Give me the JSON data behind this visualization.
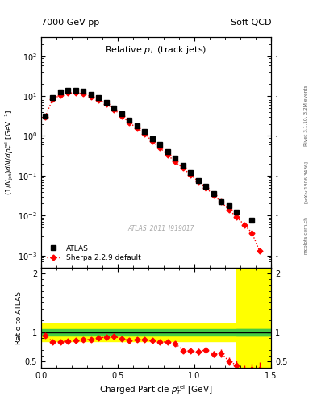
{
  "header_left": "7000 GeV pp",
  "header_right": "Soft QCD",
  "right_label_top": "Rivet 3.1.10, 3.2M events",
  "right_label_mid": "[arXiv:1306.3436]",
  "right_label_bot": "mcplots.cern.ch",
  "watermark": "ATLAS_2011_I919017",
  "ylabel_ratio": "Ratio to ATLAS",
  "atlas_x": [
    0.025,
    0.075,
    0.125,
    0.175,
    0.225,
    0.275,
    0.325,
    0.375,
    0.425,
    0.475,
    0.525,
    0.575,
    0.625,
    0.675,
    0.725,
    0.775,
    0.825,
    0.875,
    0.925,
    0.975,
    1.025,
    1.075,
    1.125,
    1.175,
    1.225,
    1.275,
    1.375
  ],
  "atlas_y": [
    3.2,
    9.0,
    12.5,
    14.0,
    14.0,
    13.0,
    11.0,
    9.0,
    7.0,
    5.0,
    3.6,
    2.5,
    1.8,
    1.3,
    0.85,
    0.6,
    0.4,
    0.28,
    0.18,
    0.12,
    0.075,
    0.055,
    0.035,
    0.022,
    0.018,
    0.012,
    0.0075
  ],
  "sherpa_x": [
    0.025,
    0.075,
    0.125,
    0.175,
    0.225,
    0.275,
    0.325,
    0.375,
    0.425,
    0.475,
    0.525,
    0.575,
    0.625,
    0.675,
    0.725,
    0.775,
    0.825,
    0.875,
    0.925,
    0.975,
    1.025,
    1.075,
    1.125,
    1.175,
    1.225,
    1.275,
    1.325,
    1.375,
    1.425
  ],
  "sherpa_y": [
    3.0,
    8.2,
    10.7,
    11.9,
    12.0,
    11.3,
    9.7,
    8.1,
    6.4,
    4.6,
    3.2,
    2.15,
    1.56,
    1.13,
    0.73,
    0.5,
    0.33,
    0.225,
    0.155,
    0.105,
    0.072,
    0.05,
    0.033,
    0.022,
    0.014,
    0.0092,
    0.0059,
    0.0037,
    0.0013
  ],
  "ratio_x": [
    0.025,
    0.075,
    0.125,
    0.175,
    0.225,
    0.275,
    0.325,
    0.375,
    0.425,
    0.475,
    0.525,
    0.575,
    0.625,
    0.675,
    0.725,
    0.775,
    0.825,
    0.875,
    0.925,
    0.975,
    1.025,
    1.075,
    1.125,
    1.175,
    1.225,
    1.275,
    1.325,
    1.375,
    1.425
  ],
  "ratio_y": [
    0.94,
    0.84,
    0.84,
    0.85,
    0.86,
    0.87,
    0.88,
    0.9,
    0.92,
    0.93,
    0.89,
    0.86,
    0.87,
    0.87,
    0.86,
    0.84,
    0.83,
    0.81,
    0.69,
    0.68,
    0.67,
    0.7,
    0.63,
    0.64,
    0.51,
    0.44,
    0.35,
    0.37,
    0.37
  ],
  "ratio_err": [
    0.03,
    0.02,
    0.02,
    0.02,
    0.02,
    0.02,
    0.02,
    0.02,
    0.02,
    0.02,
    0.02,
    0.02,
    0.02,
    0.02,
    0.02,
    0.03,
    0.03,
    0.03,
    0.04,
    0.04,
    0.05,
    0.05,
    0.06,
    0.07,
    0.07,
    0.08,
    0.08,
    0.1,
    0.12
  ],
  "ylim_main": [
    0.0005,
    300
  ],
  "xlim": [
    0.0,
    1.5
  ],
  "ylim_ratio": [
    0.4,
    2.1
  ],
  "ratio_yticks": [
    0.5,
    1.0,
    2.0
  ],
  "ratio_yticklabels": [
    "0.5",
    "1",
    "2"
  ],
  "green_band": [
    0.95,
    1.05
  ],
  "yellow_band": [
    0.85,
    1.15
  ],
  "atlas_color": "black",
  "sherpa_color": "red",
  "atlas_marker": "s",
  "sherpa_marker": "D",
  "atlas_markersize": 5,
  "sherpa_markersize": 3.5
}
